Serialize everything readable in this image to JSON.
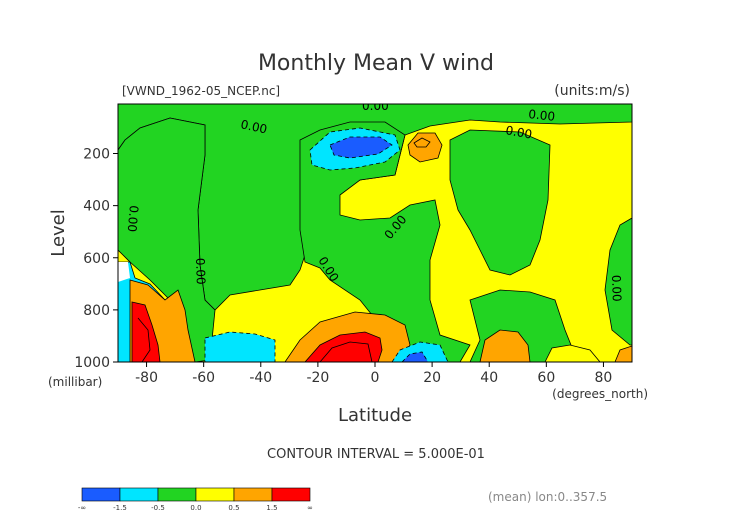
{
  "chart_data": {
    "type": "contour",
    "title": "Monthly Mean V wind",
    "subtitle_left": "[VWND_1962-05_NCEP.nc]",
    "subtitle_right": "(units:m/s)",
    "xlabel": "Latitude",
    "xunit": "(degrees_north)",
    "ylabel": "Level",
    "yunit": "(millibar)",
    "xlim": [
      -90,
      90
    ],
    "ylim": [
      1000,
      10
    ],
    "x_ticks": [
      -80,
      -60,
      -40,
      -20,
      0,
      20,
      40,
      60,
      80
    ],
    "y_ticks": [
      200,
      400,
      600,
      800,
      1000
    ],
    "contour_zero_label": "0.00",
    "contour_interval_text": "CONTOUR INTERVAL = 5.000E-01",
    "footer_note": "(mean) lon:0..357.5",
    "colorbar": {
      "labels": [
        "-∞",
        "-1.5",
        "-0.5",
        "0.0",
        "0.5",
        "1.5",
        "∞"
      ],
      "colors": [
        "#1a5cff",
        "#00e5ff",
        "#22d422",
        "#ffff00",
        "#ffa500",
        "#ff0000"
      ]
    },
    "regions": [
      {
        "name": "strong-negative",
        "color": "#1a5cff"
      },
      {
        "name": "negative",
        "color": "#00e5ff"
      },
      {
        "name": "near-zero-negative",
        "color": "#22d422"
      },
      {
        "name": "near-zero-positive",
        "color": "#ffff00"
      },
      {
        "name": "positive",
        "color": "#ffa500"
      },
      {
        "name": "strong-positive",
        "color": "#ff0000"
      }
    ]
  }
}
